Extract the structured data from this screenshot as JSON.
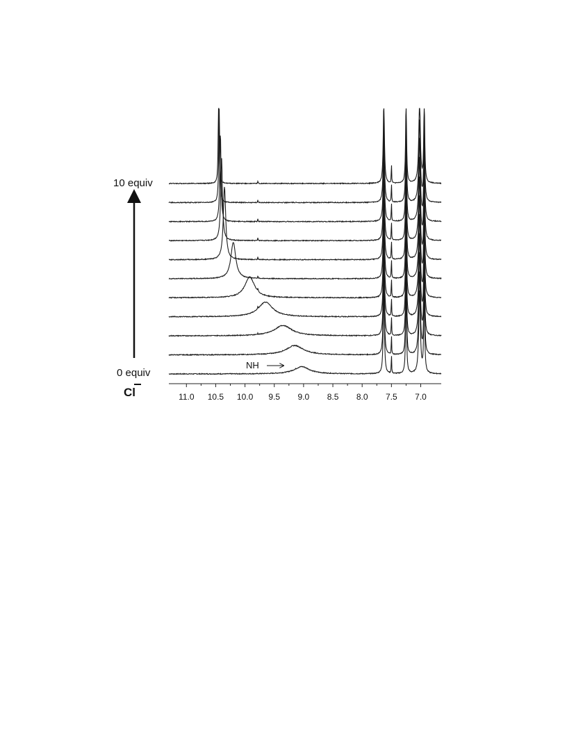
{
  "chart_data": {
    "type": "line",
    "subtype": "stacked-nmr-titration",
    "title": "",
    "xlabel": "",
    "ylabel": "",
    "x_reversed": true,
    "xlim": [
      11.3,
      6.65
    ],
    "ticks": [
      11.0,
      10.5,
      10.0,
      9.5,
      9.0,
      8.5,
      8.0,
      7.5,
      7.0
    ],
    "tick_labels": [
      "11.0",
      "10.5",
      "10.0",
      "9.5",
      "9.0",
      "8.5",
      "8.0",
      "7.5",
      "7.0"
    ],
    "labels": {
      "top": "10 equiv",
      "bottom": "0 equiv",
      "ion": "Cl",
      "nh": "NH"
    },
    "fixed_peaks": [
      {
        "ppm": 7.63,
        "height": 1.0,
        "width": 0.012
      },
      {
        "ppm": 7.5,
        "height": 0.25,
        "width": 0.004
      },
      {
        "ppm": 7.25,
        "height": 1.0,
        "width": 0.01
      },
      {
        "ppm": 7.02,
        "height": 1.0,
        "width": 0.016
      },
      {
        "ppm": 6.94,
        "height": 1.0,
        "width": 0.01
      }
    ],
    "nh_peak": [
      {
        "ppm": 9.03,
        "height": 0.07,
        "width": 0.16
      },
      {
        "ppm": 9.15,
        "height": 0.09,
        "width": 0.18
      },
      {
        "ppm": 9.35,
        "height": 0.1,
        "width": 0.18
      },
      {
        "ppm": 9.65,
        "height": 0.14,
        "width": 0.15
      },
      {
        "ppm": 9.92,
        "height": 0.2,
        "width": 0.1
      },
      {
        "ppm": 10.2,
        "height": 0.35,
        "width": 0.05
      },
      {
        "ppm": 10.35,
        "height": 0.7,
        "width": 0.025
      },
      {
        "ppm": 10.4,
        "height": 0.8,
        "width": 0.018
      },
      {
        "ppm": 10.42,
        "height": 0.85,
        "width": 0.013
      },
      {
        "ppm": 10.44,
        "height": 0.9,
        "width": 0.01
      },
      {
        "ppm": 10.45,
        "height": 1.0,
        "width": 0.008
      }
    ]
  }
}
